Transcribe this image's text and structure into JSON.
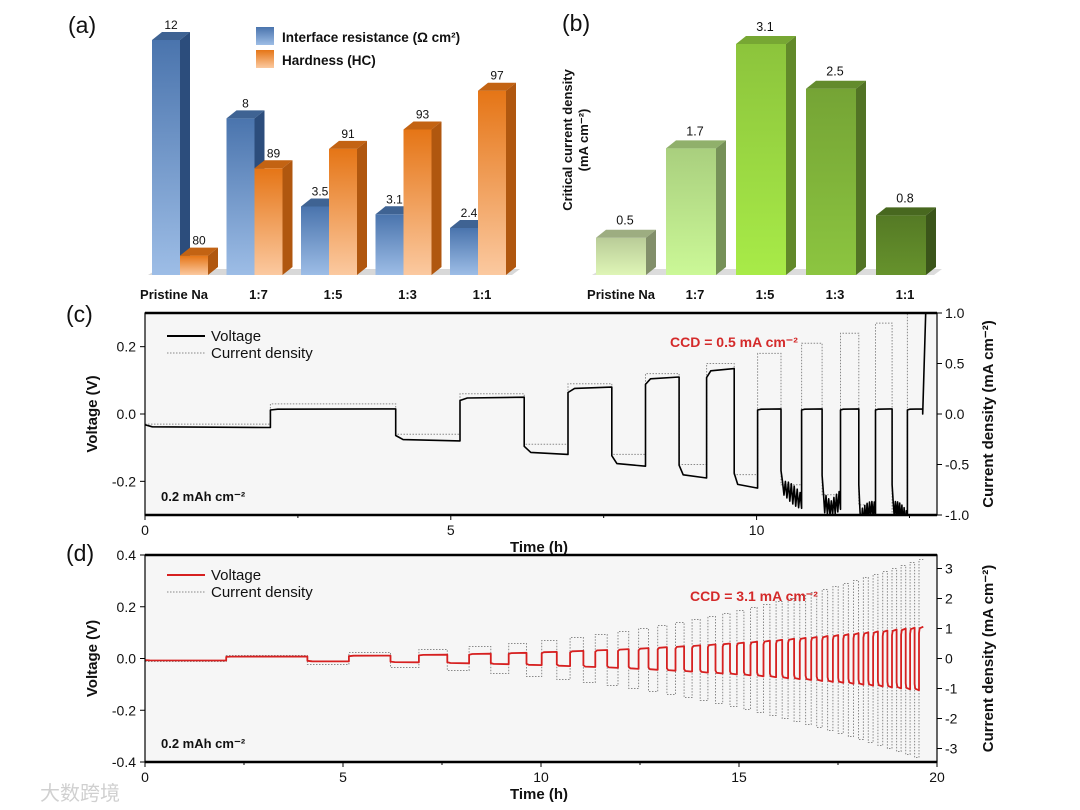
{
  "panels": {
    "a": "(a)",
    "b": "(b)",
    "c": "(c)",
    "d": "(d)"
  },
  "watermark": "大数跨境",
  "chart_data": [
    {
      "id": "a",
      "type": "bar",
      "categories": [
        "Pristine Na",
        "1:7",
        "1:5",
        "1:3",
        "1:1"
      ],
      "series": [
        {
          "name": "Interface resistance (Ω cm²)",
          "values": [
            12,
            8,
            3.5,
            3.1,
            2.4
          ],
          "labels": [
            "12",
            "8",
            "3.5",
            "3.1",
            "2.4"
          ],
          "color": "#4a74ad",
          "color_light": "#9dbde6",
          "color_side": "#2c4d7c"
        },
        {
          "name": "Hardness (HC)",
          "values": [
            80,
            89,
            91,
            93,
            97
          ],
          "labels": [
            "80",
            "89",
            "91",
            "93",
            "97"
          ],
          "color": "#e57516",
          "color_light": "#fbc9a0",
          "color_side": "#b0570f"
        }
      ],
      "legend": "top-center"
    },
    {
      "id": "b",
      "type": "bar",
      "categories": [
        "Pristine Na",
        "1:7",
        "1:5",
        "1:3",
        "1:1"
      ],
      "values": [
        0.5,
        1.7,
        3.1,
        2.5,
        0.8
      ],
      "labels": [
        "0.5",
        "1.7",
        "3.1",
        "2.5",
        "0.8"
      ],
      "colors": [
        "#b9cc98",
        "#a9cf7e",
        "#8cc43c",
        "#75a435",
        "#557a25"
      ],
      "ylabel": [
        "Critical current density",
        "(mA cm⁻²)"
      ],
      "ylim": [
        0,
        3.1
      ]
    },
    {
      "id": "c",
      "type": "line",
      "xlabel": "Time (h)",
      "ylabel": "Voltage (V)",
      "ylabel_right": "Current density (mA cm⁻²)",
      "xlim": [
        0,
        12.95
      ],
      "ylim": [
        -0.3,
        0.3
      ],
      "ylim_right": [
        -1.0,
        1.0
      ],
      "xticks": [
        0,
        5,
        10
      ],
      "xtick_labels": [
        "0",
        "5",
        "10"
      ],
      "yticks": [
        -0.2,
        0.0,
        0.2
      ],
      "ytick_labels": [
        "-0.2",
        "0.0",
        "0.2"
      ],
      "yticks_right": [
        -1.0,
        -0.5,
        0.0,
        0.5,
        1.0
      ],
      "ytick_labels_right": [
        "-1.0",
        "-0.5",
        "0.0",
        "0.5",
        "1.0"
      ],
      "legend": [
        "Voltage",
        "Current density"
      ],
      "annotation": "CCD = 0.5 mA cm⁻²",
      "capacity_label": "0.2 mAh cm⁻²",
      "capacity_mAh_cm2": 0.2,
      "dwell_h": 0.05,
      "current_steps": [
        0.1,
        0.2,
        0.3,
        0.4,
        0.5,
        0.6,
        0.7,
        0.8,
        0.9,
        1.0
      ],
      "voltage_neg": [
        -0.04,
        -0.08,
        -0.12,
        -0.155,
        -0.19,
        -0.22,
        -0.24,
        -0.26,
        -0.3,
        -0.3
      ],
      "voltage_pos": [
        0.015,
        0.05,
        0.08,
        0.11,
        0.135,
        0.015,
        0.015,
        0.015,
        0.015,
        0.015
      ],
      "short_circuit_from_step": 6,
      "voltage_color": "#000000",
      "annotation_color": "#d42a2a"
    },
    {
      "id": "d",
      "type": "line",
      "xlabel": "Time (h)",
      "ylabel": "Voltage (V)",
      "ylabel_right": "Current density (mA cm⁻²)",
      "xlim": [
        0,
        20
      ],
      "ylim": [
        -0.4,
        0.4
      ],
      "ylim_right": [
        -3.45,
        3.45
      ],
      "xticks": [
        0,
        5,
        10,
        15,
        20
      ],
      "xtick_labels": [
        "0",
        "5",
        "10",
        "15",
        "20"
      ],
      "yticks": [
        -0.4,
        -0.2,
        0.0,
        0.2,
        0.4
      ],
      "ytick_labels": [
        "-0.4",
        "-0.2",
        "0.0",
        "0.2",
        "0.4"
      ],
      "yticks_right": [
        -3,
        -2,
        -1,
        0,
        1,
        2,
        3
      ],
      "ytick_labels_right": [
        "-3",
        "-2",
        "-1",
        "0",
        "1",
        "2",
        "3"
      ],
      "legend": [
        "Voltage",
        "Current density"
      ],
      "annotation": "CCD = 3.1 mA cm⁻²",
      "capacity_label": "0.2 mAh cm⁻²",
      "capacity_mAh_cm2": 0.2,
      "dwell_h": 0.05,
      "current_start": 0.1,
      "current_increment": 0.1,
      "current_max": 3.3,
      "voltage_per_current_V": 0.036,
      "voltage_color": "#d62020",
      "annotation_color": "#d42a2a"
    }
  ]
}
